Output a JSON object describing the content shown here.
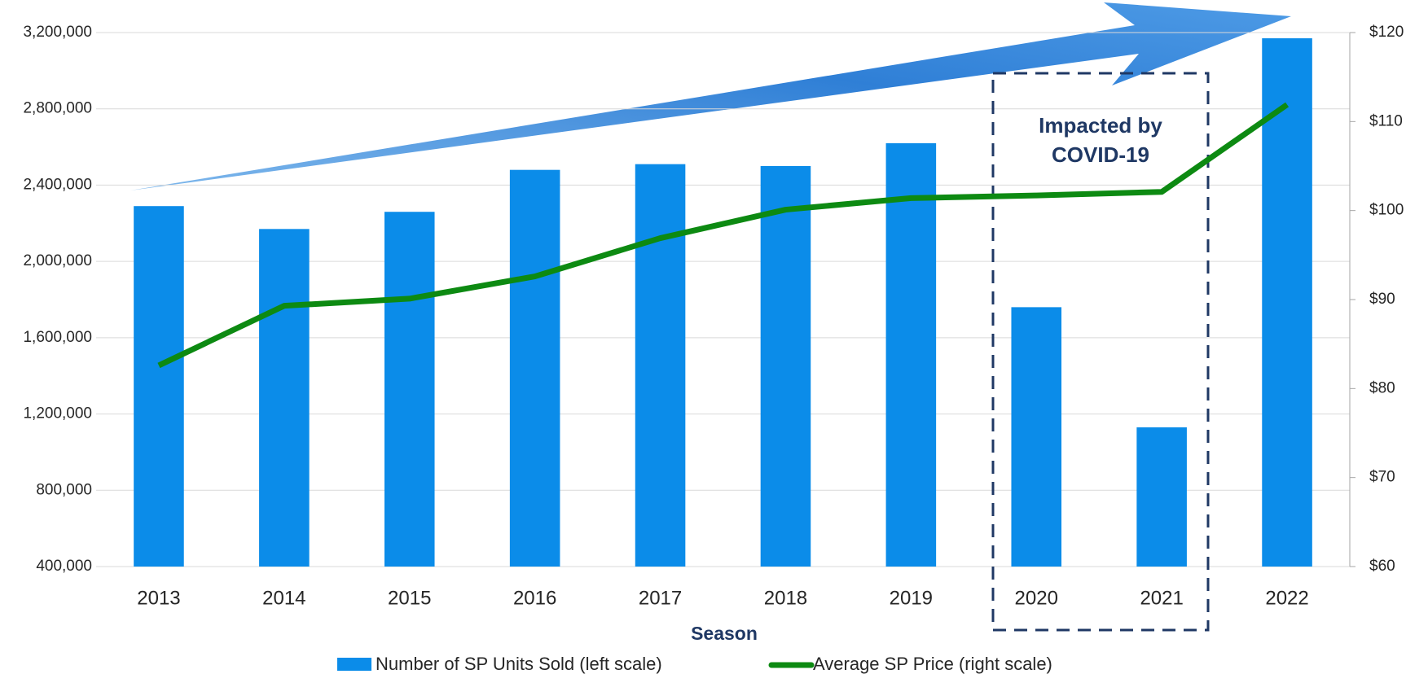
{
  "chart_data": {
    "type": "bar",
    "categories": [
      "2013",
      "2014",
      "2015",
      "2016",
      "2017",
      "2018",
      "2019",
      "2020",
      "2021",
      "2022"
    ],
    "series": [
      {
        "name": "Number of SP Units Sold (left scale)",
        "color": "#0b8ce9",
        "type": "bar",
        "values": [
          2290000,
          2170000,
          2260000,
          2480000,
          2510000,
          2500000,
          2620000,
          1760000,
          1130000,
          3170000
        ]
      },
      {
        "name": "Average SP Price (right scale)",
        "color": "#0d8a12",
        "type": "line",
        "axis": "y2",
        "values": [
          82.6,
          89.3,
          90.1,
          92.6,
          96.9,
          100.1,
          101.4,
          101.7,
          102.1,
          111.9
        ]
      }
    ],
    "ylim": [
      400000,
      3200000
    ],
    "yticks": [
      {
        "value": 400000,
        "label": "400,000"
      },
      {
        "value": 800000,
        "label": "800,000"
      },
      {
        "value": 1200000,
        "label": "1,200,000"
      },
      {
        "value": 1600000,
        "label": "1,600,000"
      },
      {
        "value": 2000000,
        "label": "2,000,000"
      },
      {
        "value": 2400000,
        "label": "2,400,000"
      },
      {
        "value": 2800000,
        "label": "2,800,000"
      },
      {
        "value": 3200000,
        "label": "3,200,000"
      }
    ],
    "y2lim": [
      60,
      120
    ],
    "y2ticks": [
      {
        "value": 60,
        "label": "$60"
      },
      {
        "value": 70,
        "label": "$70"
      },
      {
        "value": 80,
        "label": "$80"
      },
      {
        "value": 90,
        "label": "$90"
      },
      {
        "value": 100,
        "label": "$100"
      },
      {
        "value": 110,
        "label": "$110"
      },
      {
        "value": 120,
        "label": "$120"
      }
    ],
    "x_label": "Season",
    "annotation": [
      "Impacted by",
      "COVID-19"
    ],
    "grid": true
  }
}
